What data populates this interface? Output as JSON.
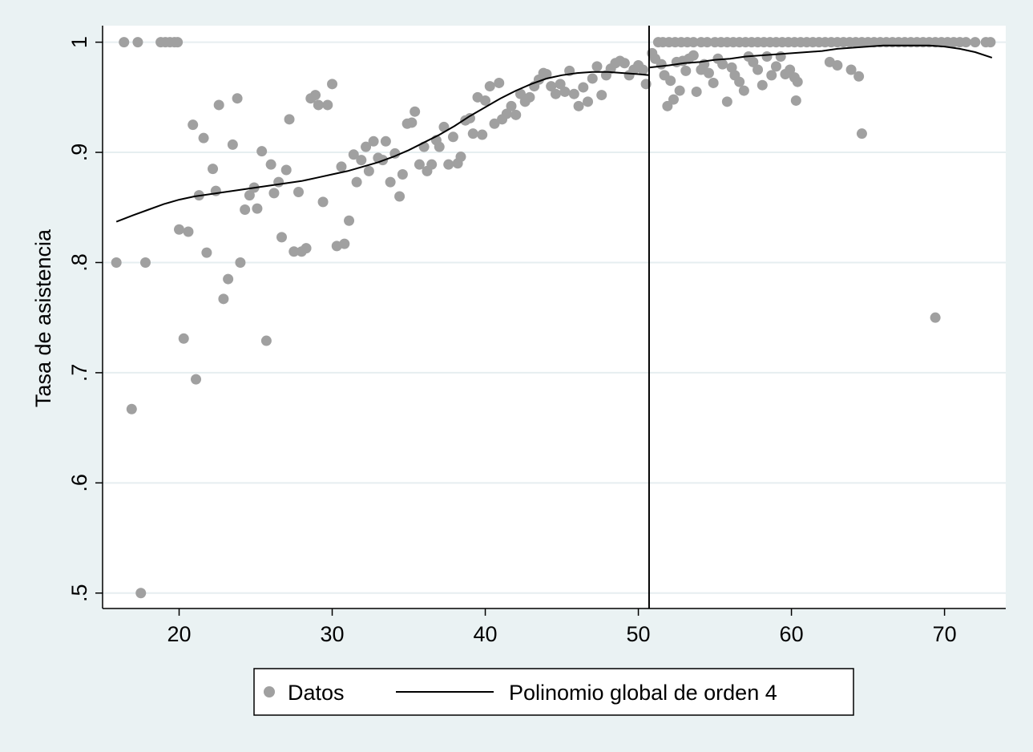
{
  "chart_data": {
    "type": "scatter",
    "ylabel": "Tasa de asistencia",
    "xlabel": "",
    "xlim": [
      15,
      74
    ],
    "ylim": [
      0.486,
      1.015
    ],
    "xticks": [
      20,
      30,
      40,
      50,
      60,
      70
    ],
    "xtick_labels": [
      "20",
      "30",
      "40",
      "50",
      "60",
      "70"
    ],
    "yticks": [
      0.5,
      0.6,
      0.7,
      0.8,
      0.9,
      1.0
    ],
    "ytick_labels": [
      ".5",
      ".6",
      ".7",
      ".8",
      ".9",
      "1"
    ],
    "grid": "horizontal",
    "cutoff_x": 50.7,
    "legend": {
      "position": "bottom",
      "entries": [
        {
          "label": "Datos",
          "marker": "dot"
        },
        {
          "label": "Polinomio global de orden 4",
          "marker": "line"
        }
      ]
    },
    "colors": {
      "points": "#a0a0a0",
      "line": "#000000",
      "plot_bg": "#ffffff",
      "page_bg": "#eaf2f3",
      "grid": "#e6eef0"
    },
    "series": [
      {
        "name": "Datos",
        "kind": "points",
        "points": [
          [
            15.9,
            0.8
          ],
          [
            16.4,
            1.0
          ],
          [
            16.9,
            0.667
          ],
          [
            17.3,
            1.0
          ],
          [
            17.5,
            0.5
          ],
          [
            17.8,
            0.8
          ],
          [
            18.8,
            1.0
          ],
          [
            19.1,
            1.0
          ],
          [
            19.4,
            1.0
          ],
          [
            19.7,
            1.0
          ],
          [
            19.9,
            1.0
          ],
          [
            20.0,
            0.83
          ],
          [
            20.3,
            0.731
          ],
          [
            20.6,
            0.828
          ],
          [
            20.9,
            0.925
          ],
          [
            21.1,
            0.694
          ],
          [
            21.3,
            0.861
          ],
          [
            21.6,
            0.913
          ],
          [
            21.8,
            0.809
          ],
          [
            22.2,
            0.885
          ],
          [
            22.4,
            0.865
          ],
          [
            22.6,
            0.943
          ],
          [
            22.9,
            0.767
          ],
          [
            23.2,
            0.785
          ],
          [
            23.5,
            0.907
          ],
          [
            23.8,
            0.949
          ],
          [
            24.0,
            0.8
          ],
          [
            24.3,
            0.848
          ],
          [
            24.6,
            0.861
          ],
          [
            24.9,
            0.868
          ],
          [
            25.1,
            0.849
          ],
          [
            25.4,
            0.901
          ],
          [
            25.7,
            0.729
          ],
          [
            26.0,
            0.889
          ],
          [
            26.2,
            0.863
          ],
          [
            26.5,
            0.873
          ],
          [
            26.7,
            0.823
          ],
          [
            27.0,
            0.884
          ],
          [
            27.2,
            0.93
          ],
          [
            27.5,
            0.81
          ],
          [
            27.8,
            0.864
          ],
          [
            28.0,
            0.81
          ],
          [
            28.3,
            0.813
          ],
          [
            28.6,
            0.949
          ],
          [
            28.9,
            0.952
          ],
          [
            29.1,
            0.943
          ],
          [
            29.4,
            0.855
          ],
          [
            29.7,
            0.943
          ],
          [
            30.0,
            0.962
          ],
          [
            30.3,
            0.815
          ],
          [
            30.6,
            0.887
          ],
          [
            30.8,
            0.817
          ],
          [
            31.1,
            0.838
          ],
          [
            31.4,
            0.898
          ],
          [
            31.6,
            0.873
          ],
          [
            31.9,
            0.893
          ],
          [
            32.2,
            0.905
          ],
          [
            32.4,
            0.883
          ],
          [
            32.7,
            0.91
          ],
          [
            33.0,
            0.895
          ],
          [
            33.3,
            0.893
          ],
          [
            33.5,
            0.91
          ],
          [
            33.8,
            0.873
          ],
          [
            34.1,
            0.899
          ],
          [
            34.4,
            0.86
          ],
          [
            34.6,
            0.88
          ],
          [
            34.9,
            0.926
          ],
          [
            35.2,
            0.927
          ],
          [
            35.4,
            0.937
          ],
          [
            35.7,
            0.889
          ],
          [
            36.0,
            0.905
          ],
          [
            36.2,
            0.883
          ],
          [
            36.5,
            0.889
          ],
          [
            36.8,
            0.911
          ],
          [
            37.0,
            0.905
          ],
          [
            37.3,
            0.923
          ],
          [
            37.6,
            0.889
          ],
          [
            37.9,
            0.914
          ],
          [
            38.2,
            0.89
          ],
          [
            38.4,
            0.896
          ],
          [
            38.7,
            0.929
          ],
          [
            39.0,
            0.931
          ],
          [
            39.2,
            0.917
          ],
          [
            39.5,
            0.95
          ],
          [
            39.8,
            0.916
          ],
          [
            40.0,
            0.947
          ],
          [
            40.3,
            0.96
          ],
          [
            40.6,
            0.926
          ],
          [
            40.9,
            0.963
          ],
          [
            41.1,
            0.93
          ],
          [
            41.4,
            0.935
          ],
          [
            41.7,
            0.942
          ],
          [
            42.0,
            0.934
          ],
          [
            42.3,
            0.953
          ],
          [
            42.6,
            0.946
          ],
          [
            42.9,
            0.95
          ],
          [
            43.2,
            0.96
          ],
          [
            43.5,
            0.966
          ],
          [
            43.8,
            0.972
          ],
          [
            44.0,
            0.971
          ],
          [
            44.3,
            0.96
          ],
          [
            44.6,
            0.953
          ],
          [
            44.9,
            0.962
          ],
          [
            45.2,
            0.955
          ],
          [
            45.5,
            0.974
          ],
          [
            45.8,
            0.953
          ],
          [
            46.1,
            0.942
          ],
          [
            46.4,
            0.959
          ],
          [
            46.7,
            0.946
          ],
          [
            47.0,
            0.967
          ],
          [
            47.3,
            0.978
          ],
          [
            47.6,
            0.952
          ],
          [
            47.9,
            0.97
          ],
          [
            48.2,
            0.976
          ],
          [
            48.5,
            0.981
          ],
          [
            48.8,
            0.983
          ],
          [
            49.1,
            0.981
          ],
          [
            49.4,
            0.97
          ],
          [
            49.7,
            0.975
          ],
          [
            50.0,
            0.979
          ],
          [
            50.3,
            0.975
          ],
          [
            50.5,
            0.962
          ],
          [
            50.9,
            0.99
          ],
          [
            51.1,
            0.985
          ],
          [
            51.3,
            1.0
          ],
          [
            51.5,
            0.98
          ],
          [
            51.7,
            0.97
          ],
          [
            51.9,
            0.942
          ],
          [
            52.1,
            0.965
          ],
          [
            52.3,
            0.948
          ],
          [
            52.5,
            0.982
          ],
          [
            52.7,
            0.956
          ],
          [
            52.9,
            0.983
          ],
          [
            53.1,
            0.974
          ],
          [
            53.3,
            0.985
          ],
          [
            53.6,
            0.988
          ],
          [
            53.8,
            0.955
          ],
          [
            54.1,
            0.975
          ],
          [
            54.3,
            0.98
          ],
          [
            54.6,
            0.972
          ],
          [
            54.9,
            0.963
          ],
          [
            55.2,
            0.985
          ],
          [
            55.5,
            0.98
          ],
          [
            55.8,
            0.946
          ],
          [
            56.1,
            0.977
          ],
          [
            56.3,
            0.97
          ],
          [
            56.6,
            0.964
          ],
          [
            56.9,
            0.956
          ],
          [
            57.2,
            0.987
          ],
          [
            57.5,
            0.982
          ],
          [
            57.8,
            0.975
          ],
          [
            58.1,
            0.961
          ],
          [
            58.4,
            0.987
          ],
          [
            58.7,
            0.97
          ],
          [
            59.0,
            0.978
          ],
          [
            59.3,
            0.987
          ],
          [
            59.6,
            0.971
          ],
          [
            59.9,
            0.975
          ],
          [
            60.2,
            0.968
          ],
          [
            60.4,
            0.964
          ],
          [
            60.3,
            0.947
          ],
          [
            62.5,
            0.982
          ],
          [
            63.0,
            0.979
          ],
          [
            63.9,
            0.975
          ],
          [
            64.4,
            0.969
          ],
          [
            64.6,
            0.917
          ],
          [
            69.4,
            0.75
          ],
          [
            51.6,
            1.0
          ],
          [
            52.0,
            1.0
          ],
          [
            52.4,
            1.0
          ],
          [
            52.8,
            1.0
          ],
          [
            53.2,
            1.0
          ],
          [
            53.6,
            1.0
          ],
          [
            54.1,
            1.0
          ],
          [
            54.5,
            1.0
          ],
          [
            55.0,
            1.0
          ],
          [
            55.4,
            1.0
          ],
          [
            55.8,
            1.0
          ],
          [
            56.2,
            1.0
          ],
          [
            56.6,
            1.0
          ],
          [
            57.0,
            1.0
          ],
          [
            57.4,
            1.0
          ],
          [
            57.8,
            1.0
          ],
          [
            58.2,
            1.0
          ],
          [
            58.6,
            1.0
          ],
          [
            59.0,
            1.0
          ],
          [
            59.4,
            1.0
          ],
          [
            59.8,
            1.0
          ],
          [
            60.2,
            1.0
          ],
          [
            60.6,
            1.0
          ],
          [
            61.0,
            1.0
          ],
          [
            61.4,
            1.0
          ],
          [
            61.8,
            1.0
          ],
          [
            62.2,
            1.0
          ],
          [
            62.6,
            1.0
          ],
          [
            63.0,
            1.0
          ],
          [
            63.4,
            1.0
          ],
          [
            63.8,
            1.0
          ],
          [
            64.2,
            1.0
          ],
          [
            64.6,
            1.0
          ],
          [
            65.0,
            1.0
          ],
          [
            65.4,
            1.0
          ],
          [
            65.8,
            1.0
          ],
          [
            66.2,
            1.0
          ],
          [
            66.6,
            1.0
          ],
          [
            67.0,
            1.0
          ],
          [
            67.4,
            1.0
          ],
          [
            67.8,
            1.0
          ],
          [
            68.2,
            1.0
          ],
          [
            68.6,
            1.0
          ],
          [
            69.0,
            1.0
          ],
          [
            69.4,
            1.0
          ],
          [
            69.8,
            1.0
          ],
          [
            70.2,
            1.0
          ],
          [
            70.6,
            1.0
          ],
          [
            71.0,
            1.0
          ],
          [
            71.4,
            1.0
          ],
          [
            72.0,
            1.0
          ],
          [
            72.7,
            1.0
          ],
          [
            73.0,
            1.0
          ]
        ]
      },
      {
        "name": "Polinomio global de orden 4",
        "kind": "line",
        "points": [
          [
            15.9,
            0.837
          ],
          [
            17.0,
            0.843
          ],
          [
            18.0,
            0.848
          ],
          [
            19.0,
            0.853
          ],
          [
            20.0,
            0.857
          ],
          [
            21.0,
            0.86
          ],
          [
            22.0,
            0.862
          ],
          [
            23.0,
            0.864
          ],
          [
            24.0,
            0.866
          ],
          [
            25.0,
            0.868
          ],
          [
            26.0,
            0.87
          ],
          [
            27.0,
            0.872
          ],
          [
            28.0,
            0.874
          ],
          [
            29.0,
            0.877
          ],
          [
            30.0,
            0.88
          ],
          [
            31.0,
            0.883
          ],
          [
            32.0,
            0.887
          ],
          [
            33.0,
            0.891
          ],
          [
            34.0,
            0.896
          ],
          [
            35.0,
            0.902
          ],
          [
            36.0,
            0.909
          ],
          [
            37.0,
            0.916
          ],
          [
            38.0,
            0.924
          ],
          [
            39.0,
            0.933
          ],
          [
            40.0,
            0.941
          ],
          [
            41.0,
            0.949
          ],
          [
            42.0,
            0.956
          ],
          [
            43.0,
            0.962
          ],
          [
            44.0,
            0.967
          ],
          [
            45.0,
            0.97
          ],
          [
            46.0,
            0.972
          ],
          [
            47.0,
            0.973
          ],
          [
            48.0,
            0.973
          ],
          [
            49.0,
            0.972
          ],
          [
            50.0,
            0.971
          ],
          [
            50.7,
            0.97
          ]
        ]
      },
      {
        "name": "Polinomio global de orden 4",
        "kind": "line",
        "points": [
          [
            50.7,
            0.977
          ],
          [
            52.0,
            0.979
          ],
          [
            53.0,
            0.981
          ],
          [
            54.0,
            0.982
          ],
          [
            55.0,
            0.984
          ],
          [
            56.0,
            0.985
          ],
          [
            57.0,
            0.987
          ],
          [
            58.0,
            0.988
          ],
          [
            59.0,
            0.989
          ],
          [
            60.0,
            0.99
          ],
          [
            61.0,
            0.991
          ],
          [
            62.0,
            0.992
          ],
          [
            63.0,
            0.994
          ],
          [
            64.0,
            0.995
          ],
          [
            65.0,
            0.996
          ],
          [
            66.0,
            0.997
          ],
          [
            67.0,
            0.997
          ],
          [
            68.0,
            0.997
          ],
          [
            69.0,
            0.997
          ],
          [
            70.0,
            0.996
          ],
          [
            71.0,
            0.994
          ],
          [
            72.0,
            0.991
          ],
          [
            73.1,
            0.986
          ]
        ]
      }
    ]
  }
}
